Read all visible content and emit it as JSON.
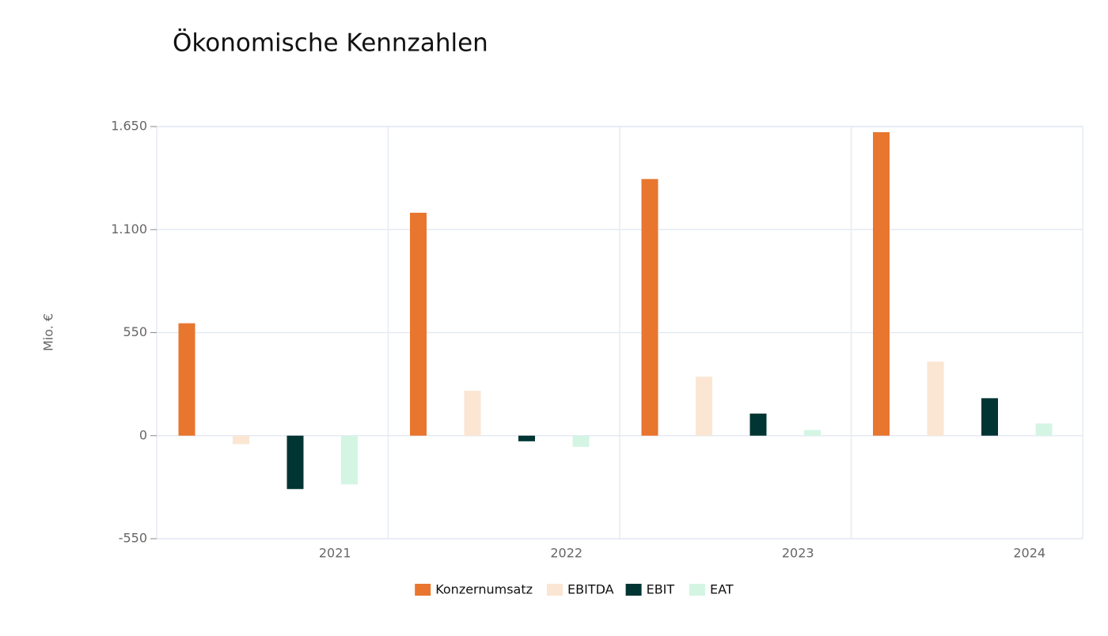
{
  "chart_data": {
    "type": "bar",
    "title": "Ökonomische Kennzahlen",
    "y_label": "Mio. €",
    "categories": [
      "2021",
      "2022",
      "2023",
      "2024"
    ],
    "series": [
      {
        "name": "Konzernumsatz",
        "color": "#e8762f",
        "values": [
          600,
          1190,
          1370,
          1620
        ]
      },
      {
        "name": "EBITDA",
        "color": "#fae6d2",
        "values": [
          -45,
          240,
          315,
          395
        ]
      },
      {
        "name": "EBIT",
        "color": "#003533",
        "values": [
          -285,
          -30,
          118,
          200
        ]
      },
      {
        "name": "EAT",
        "color": "#d4f5e4",
        "values": [
          -260,
          -60,
          30,
          65
        ]
      }
    ],
    "ylim": [
      -550,
      1650
    ],
    "yticks": [
      -550,
      0,
      550,
      {
        "value": 1100,
        "label": "1.100"
      },
      {
        "value": 1650,
        "label": "1.650"
      }
    ],
    "grid": true
  }
}
